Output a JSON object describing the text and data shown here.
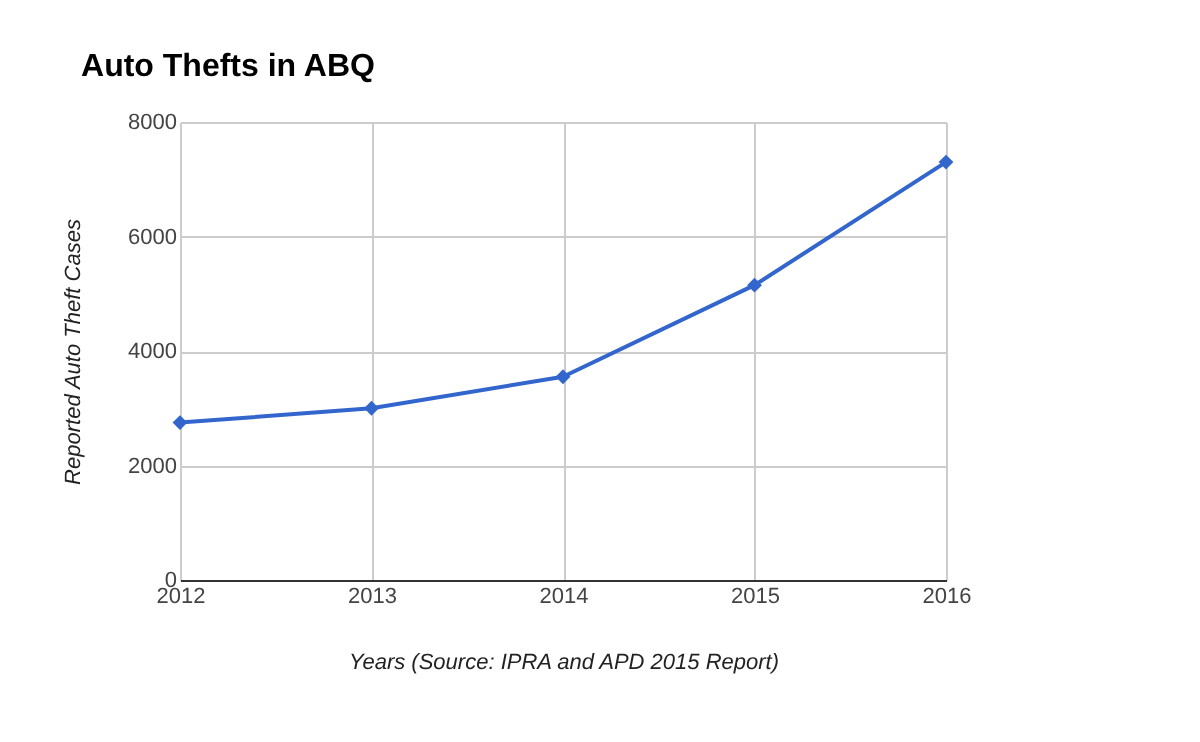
{
  "chart_data": {
    "type": "line",
    "title": "Auto Thefts in ABQ",
    "xlabel": "Years (Source: IPRA and APD 2015 Report)",
    "ylabel": "Reported Auto Theft Cases",
    "x": [
      2012,
      2013,
      2014,
      2015,
      2016
    ],
    "series": [
      {
        "color": "#3366cc",
        "values": [
          2750,
          3000,
          3550,
          5150,
          7300
        ]
      }
    ],
    "xlim": [
      2012,
      2016
    ],
    "xticks": [
      2012,
      2013,
      2014,
      2015,
      2016
    ],
    "ylim": [
      0,
      8000
    ],
    "yticks": [
      0,
      2000,
      4000,
      6000,
      8000
    ],
    "grid": true,
    "marker": "diamond",
    "line_style": "solid"
  }
}
